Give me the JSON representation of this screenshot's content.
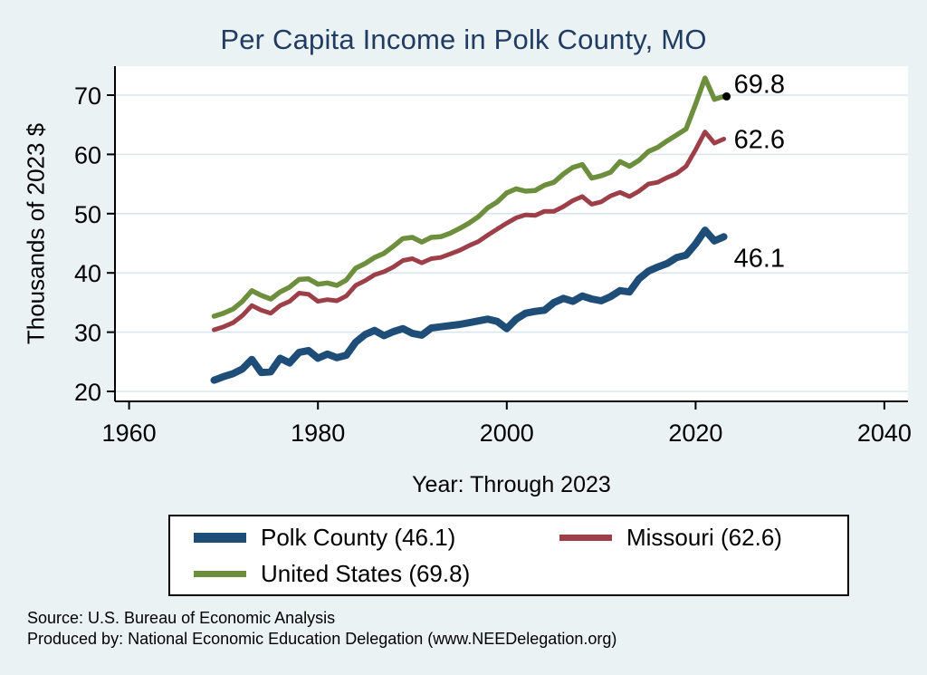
{
  "title": {
    "text": "Per Capita Income in Polk County, MO",
    "color": "#213c63"
  },
  "colors": {
    "background": "#eaf2f3",
    "plot_background": "#ffffff",
    "gridline": "#d9e6ee",
    "axis": "#000000",
    "polk_county": "#1e4d78",
    "missouri": "#9d3f49",
    "united_states": "#6d8f3d"
  },
  "footer": {
    "line1": "Source: U.S. Bureau of Economic Analysis",
    "line2": "Produced by: National Economic Education Delegation (www.NEEDelegation.org)"
  },
  "chart_data": {
    "type": "line",
    "title": "Per Capita Income in Polk County, MO",
    "xlabel": "Year: Through 2023",
    "ylabel": "Thousands of 2023 $",
    "grid": "horizontal",
    "legend_position": "bottom",
    "x_ticks": [
      1960,
      1980,
      2000,
      2020,
      2040
    ],
    "y_ticks": [
      20,
      30,
      40,
      50,
      60,
      70
    ],
    "x_domain": [
      1958.5,
      2042.5
    ],
    "y_domain": [
      18.32,
      74.9
    ],
    "years": [
      1969,
      1970,
      1971,
      1972,
      1973,
      1974,
      1975,
      1976,
      1977,
      1978,
      1979,
      1980,
      1981,
      1982,
      1983,
      1984,
      1985,
      1986,
      1987,
      1988,
      1989,
      1990,
      1991,
      1992,
      1993,
      1994,
      1995,
      1996,
      1997,
      1998,
      1999,
      2000,
      2001,
      2002,
      2003,
      2004,
      2005,
      2006,
      2007,
      2008,
      2009,
      2010,
      2011,
      2012,
      2013,
      2014,
      2015,
      2016,
      2017,
      2018,
      2019,
      2020,
      2021,
      2022,
      2023
    ],
    "series": [
      {
        "id": "polk_county",
        "name": "Polk County",
        "legend_label": "Polk County (46.1)",
        "color": "#1e4d78",
        "end_label": "46.1",
        "values": [
          21.9,
          22.5,
          23.0,
          23.8,
          25.4,
          23.2,
          23.3,
          25.6,
          24.8,
          26.6,
          26.9,
          25.6,
          26.3,
          25.7,
          26.1,
          28.3,
          29.6,
          30.3,
          29.4,
          30.1,
          30.6,
          29.8,
          29.5,
          30.7,
          30.9,
          31.1,
          31.3,
          31.6,
          31.9,
          32.2,
          31.8,
          30.6,
          32.2,
          33.2,
          33.5,
          33.7,
          35.0,
          35.7,
          35.2,
          36.1,
          35.6,
          35.3,
          36.0,
          37.0,
          36.8,
          39.0,
          40.3,
          41.0,
          41.6,
          42.6,
          43.0,
          44.9,
          47.2,
          45.4,
          46.1
        ]
      },
      {
        "id": "missouri",
        "name": "Missouri",
        "legend_label": "Missouri (62.6)",
        "color": "#9d3f49",
        "end_label": "62.6",
        "values": [
          30.4,
          30.9,
          31.6,
          32.8,
          34.5,
          33.7,
          33.2,
          34.5,
          35.2,
          36.6,
          36.4,
          35.2,
          35.5,
          35.3,
          36.1,
          37.9,
          38.7,
          39.7,
          40.2,
          41.0,
          42.1,
          42.4,
          41.7,
          42.4,
          42.6,
          43.2,
          43.8,
          44.6,
          45.3,
          46.4,
          47.4,
          48.4,
          49.3,
          49.8,
          49.7,
          50.4,
          50.4,
          51.2,
          52.2,
          52.9,
          51.6,
          52.0,
          53.0,
          53.6,
          52.9,
          53.8,
          55.0,
          55.3,
          56.1,
          56.8,
          58.0,
          60.8,
          63.8,
          61.9,
          62.6
        ]
      },
      {
        "id": "united_states",
        "name": "United States",
        "legend_label": "United States (69.8)",
        "color": "#6d8f3d",
        "end_label": "69.8",
        "values": [
          32.7,
          33.2,
          33.9,
          35.2,
          37.0,
          36.2,
          35.6,
          36.8,
          37.6,
          38.9,
          39.0,
          38.1,
          38.3,
          37.9,
          38.8,
          40.8,
          41.6,
          42.6,
          43.3,
          44.5,
          45.8,
          46.0,
          45.2,
          46.0,
          46.1,
          46.7,
          47.5,
          48.4,
          49.5,
          51.0,
          52.0,
          53.5,
          54.2,
          53.8,
          53.9,
          54.8,
          55.3,
          56.7,
          57.8,
          58.3,
          56.0,
          56.4,
          57.0,
          58.8,
          58.0,
          59.0,
          60.5,
          61.2,
          62.3,
          63.3,
          64.3,
          68.5,
          72.9,
          69.3,
          69.8
        ]
      }
    ]
  }
}
